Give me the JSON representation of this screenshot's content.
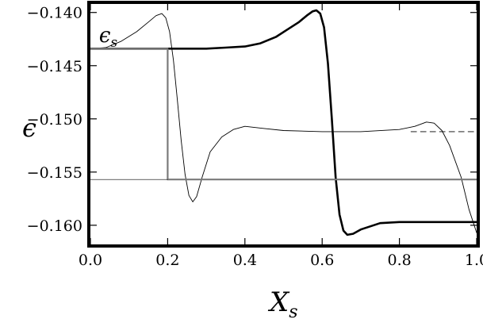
{
  "chart_data": {
    "type": "line",
    "xlabel": "X",
    "xlabel_sub": "s",
    "ylabel": "ϵ",
    "xlim": [
      0.0,
      1.0
    ],
    "ylim": [
      -0.1618,
      -0.1392
    ],
    "grid": false,
    "x_ticks": [
      {
        "value": 0.0,
        "label": "0.0"
      },
      {
        "value": 0.2,
        "label": "0.2"
      },
      {
        "value": 0.4,
        "label": "0.4"
      },
      {
        "value": 0.6,
        "label": "0.6"
      },
      {
        "value": 0.8,
        "label": "0.8"
      },
      {
        "value": 1.0,
        "label": "1.0"
      }
    ],
    "y_ticks": [
      {
        "value": -0.14,
        "label": "−0.140"
      },
      {
        "value": -0.145,
        "label": "−0.145"
      },
      {
        "value": -0.15,
        "label": "−0.150"
      },
      {
        "value": -0.155,
        "label": "−0.155"
      },
      {
        "value": -0.16,
        "label": "−0.160"
      }
    ],
    "annotations": [
      {
        "text": "ϵ",
        "sub": "s",
        "x": 0.01,
        "y": -0.1422
      }
    ],
    "series": [
      {
        "key": "thick-black",
        "color": "#000000",
        "width": 2.6,
        "dash": "",
        "points": [
          [
            0.0,
            -0.1434
          ],
          [
            0.1,
            -0.1434
          ],
          [
            0.2,
            -0.1434
          ],
          [
            0.3,
            -0.1434
          ],
          [
            0.35,
            -0.1433
          ],
          [
            0.4,
            -0.1432
          ],
          [
            0.44,
            -0.1429
          ],
          [
            0.48,
            -0.1423
          ],
          [
            0.51,
            -0.1416
          ],
          [
            0.54,
            -0.1409
          ],
          [
            0.56,
            -0.1403
          ],
          [
            0.575,
            -0.1399
          ],
          [
            0.585,
            -0.1398
          ],
          [
            0.595,
            -0.1401
          ],
          [
            0.605,
            -0.1414
          ],
          [
            0.615,
            -0.1448
          ],
          [
            0.625,
            -0.15
          ],
          [
            0.635,
            -0.1555
          ],
          [
            0.645,
            -0.159
          ],
          [
            0.655,
            -0.1605
          ],
          [
            0.665,
            -0.1609
          ],
          [
            0.68,
            -0.1608
          ],
          [
            0.7,
            -0.1604
          ],
          [
            0.75,
            -0.1598
          ],
          [
            0.8,
            -0.1597
          ],
          [
            0.9,
            -0.1597
          ],
          [
            1.0,
            -0.1597
          ]
        ]
      },
      {
        "key": "thin-black",
        "color": "#000000",
        "width": 0.9,
        "dash": "",
        "points": [
          [
            0.0,
            -0.1434
          ],
          [
            0.04,
            -0.1433
          ],
          [
            0.08,
            -0.1427
          ],
          [
            0.12,
            -0.1418
          ],
          [
            0.15,
            -0.1409
          ],
          [
            0.17,
            -0.1403
          ],
          [
            0.185,
            -0.1401
          ],
          [
            0.195,
            -0.1405
          ],
          [
            0.205,
            -0.1418
          ],
          [
            0.215,
            -0.1445
          ],
          [
            0.225,
            -0.1482
          ],
          [
            0.235,
            -0.152
          ],
          [
            0.245,
            -0.1552
          ],
          [
            0.255,
            -0.1572
          ],
          [
            0.265,
            -0.1578
          ],
          [
            0.275,
            -0.1573
          ],
          [
            0.29,
            -0.1554
          ],
          [
            0.31,
            -0.1531
          ],
          [
            0.34,
            -0.1517
          ],
          [
            0.37,
            -0.151
          ],
          [
            0.4,
            -0.1507
          ],
          [
            0.45,
            -0.1509
          ],
          [
            0.5,
            -0.1511
          ],
          [
            0.6,
            -0.1512
          ],
          [
            0.7,
            -0.1512
          ],
          [
            0.8,
            -0.151
          ],
          [
            0.84,
            -0.1507
          ],
          [
            0.87,
            -0.1503
          ],
          [
            0.89,
            -0.1504
          ],
          [
            0.91,
            -0.1511
          ],
          [
            0.93,
            -0.1525
          ],
          [
            0.96,
            -0.1555
          ],
          [
            0.98,
            -0.1585
          ],
          [
            1.0,
            -0.1607
          ]
        ]
      },
      {
        "key": "thin-dashed",
        "color": "#000000",
        "width": 0.9,
        "dash": "7,5",
        "points": [
          [
            0.83,
            -0.1512
          ],
          [
            1.0,
            -0.1512
          ]
        ]
      },
      {
        "key": "gray-step",
        "color": "#7a7a7a",
        "width": 2.2,
        "dash": "",
        "points": [
          [
            0.0,
            -0.1434
          ],
          [
            0.2,
            -0.1434
          ],
          [
            0.2,
            -0.1557
          ],
          [
            1.0,
            -0.1557
          ]
        ]
      },
      {
        "key": "thin-flat",
        "color": "#000000",
        "width": 0.7,
        "dash": "",
        "points": [
          [
            0.0,
            -0.1557
          ],
          [
            0.2,
            -0.1557
          ]
        ]
      }
    ]
  }
}
